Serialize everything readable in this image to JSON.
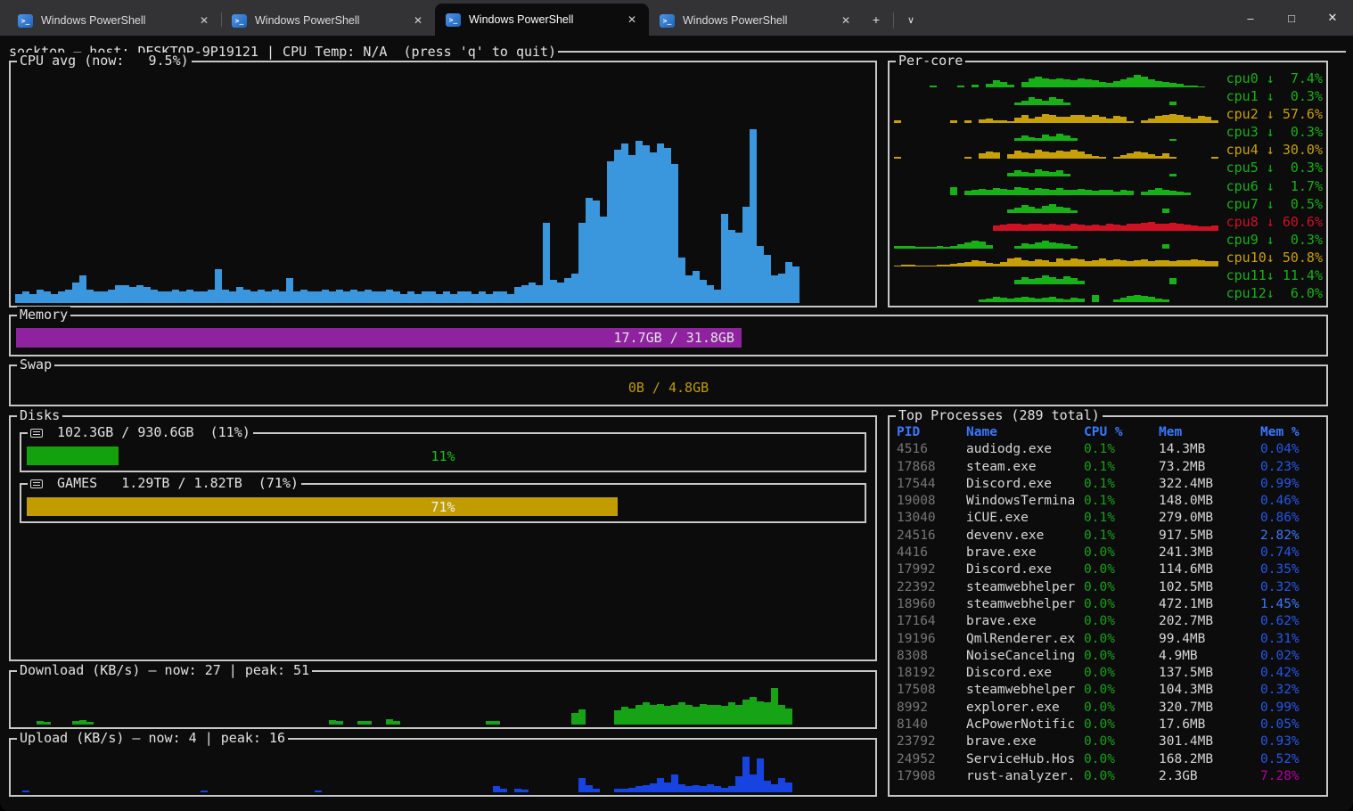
{
  "titlebar": {
    "tabs": [
      {
        "title": "Windows PowerShell",
        "active": false
      },
      {
        "title": "Windows PowerShell",
        "active": false
      },
      {
        "title": "Windows PowerShell",
        "active": true
      },
      {
        "title": "Windows PowerShell",
        "active": false
      }
    ],
    "icon_glyph": ">_",
    "close_glyph": "✕",
    "new_tab_glyph": "+",
    "dropdown_glyph": "∨",
    "minimize_glyph": "–",
    "maximize_glyph": "□",
    "window_close_glyph": "✕"
  },
  "header": {
    "text": "socktop — host: DESKTOP-9P19121 | CPU Temp: N/A  (press 'q' to quit)"
  },
  "cpu_avg": {
    "title": "CPU avg (now:   9.5%)",
    "color": "#3A96DD",
    "values": [
      4,
      5,
      4,
      6,
      5,
      4,
      5,
      6,
      9,
      12,
      6,
      5,
      5,
      6,
      8,
      8,
      7,
      8,
      7,
      6,
      5,
      5,
      6,
      5,
      6,
      5,
      5,
      6,
      15,
      6,
      5,
      7,
      6,
      5,
      6,
      5,
      6,
      5,
      11,
      5,
      6,
      5,
      5,
      6,
      5,
      6,
      5,
      6,
      5,
      6,
      5,
      5,
      6,
      5,
      4,
      5,
      4,
      5,
      5,
      4,
      5,
      4,
      5,
      5,
      4,
      5,
      4,
      5,
      5,
      4,
      7,
      8,
      9,
      8,
      35,
      10,
      9,
      11,
      13,
      35,
      46,
      45,
      38,
      62,
      67,
      70,
      65,
      71,
      69,
      66,
      70,
      68,
      61,
      20,
      12,
      14,
      10,
      8,
      6,
      39,
      32,
      31,
      42,
      76,
      25,
      21,
      12,
      13,
      18,
      16,
      0,
      0,
      0,
      0,
      0,
      0,
      0,
      0,
      0,
      0
    ]
  },
  "per_core": {
    "title": "Per-core",
    "cores": [
      {
        "label": "cpu0 ↓  7.4%",
        "color": "#17B117",
        "values": [
          0,
          0,
          0,
          0,
          0,
          10,
          0,
          0,
          0,
          12,
          0,
          14,
          0,
          22,
          42,
          28,
          16,
          0,
          32,
          48,
          58,
          52,
          45,
          50,
          44,
          40,
          50,
          44,
          38,
          30,
          25,
          34,
          44,
          54,
          68,
          62,
          44,
          36,
          30,
          24,
          18,
          12,
          8,
          6,
          0,
          0
        ]
      },
      {
        "label": "cpu1 ↓  0.3%",
        "color": "#17B117",
        "values": [
          0,
          0,
          0,
          0,
          0,
          0,
          0,
          0,
          0,
          0,
          0,
          0,
          0,
          0,
          0,
          0,
          0,
          14,
          28,
          44,
          34,
          24,
          48,
          38,
          18,
          0,
          0,
          0,
          0,
          0,
          0,
          0,
          0,
          0,
          0,
          0,
          0,
          0,
          0,
          20,
          0,
          0,
          0,
          0,
          0,
          0
        ]
      },
      {
        "label": "cpu2 ↓ 57.6%",
        "color": "#C7A008",
        "values": [
          14,
          0,
          0,
          0,
          0,
          0,
          0,
          0,
          16,
          0,
          14,
          0,
          22,
          28,
          18,
          14,
          10,
          32,
          44,
          28,
          34,
          52,
          48,
          38,
          34,
          44,
          48,
          36,
          44,
          36,
          28,
          40,
          34,
          10,
          0,
          18,
          28,
          42,
          48,
          52,
          44,
          36,
          28,
          42,
          34,
          14
        ]
      },
      {
        "label": "cpu3 ↓  0.3%",
        "color": "#17B117",
        "values": [
          0,
          0,
          0,
          0,
          0,
          0,
          0,
          0,
          0,
          0,
          0,
          0,
          0,
          0,
          0,
          0,
          0,
          18,
          32,
          24,
          18,
          38,
          28,
          42,
          32,
          16,
          0,
          0,
          0,
          0,
          0,
          0,
          0,
          0,
          0,
          0,
          0,
          0,
          0,
          14,
          0,
          0,
          0,
          0,
          0,
          0
        ]
      },
      {
        "label": "cpu4 ↓ 30.0%",
        "color": "#C7A008",
        "values": [
          10,
          0,
          0,
          0,
          0,
          0,
          0,
          0,
          0,
          0,
          12,
          0,
          34,
          44,
          38,
          0,
          28,
          48,
          38,
          34,
          52,
          44,
          36,
          48,
          40,
          52,
          44,
          28,
          18,
          10,
          0,
          14,
          24,
          34,
          40,
          36,
          28,
          18,
          34,
          12,
          0,
          0,
          0,
          0,
          0,
          12
        ]
      },
      {
        "label": "cpu5 ↓  0.3%",
        "color": "#17B117",
        "values": [
          0,
          0,
          0,
          0,
          0,
          0,
          0,
          0,
          0,
          0,
          0,
          0,
          0,
          0,
          0,
          0,
          24,
          38,
          28,
          20,
          44,
          34,
          26,
          38,
          18,
          0,
          0,
          0,
          0,
          0,
          0,
          0,
          0,
          0,
          0,
          0,
          0,
          0,
          0,
          16,
          0,
          0,
          0,
          0,
          0,
          0
        ]
      },
      {
        "label": "cpu6 ↓  1.7%",
        "color": "#17B117",
        "values": [
          0,
          0,
          0,
          0,
          0,
          0,
          0,
          0,
          42,
          0,
          24,
          28,
          34,
          26,
          38,
          34,
          28,
          44,
          36,
          30,
          40,
          34,
          28,
          36,
          30,
          26,
          34,
          28,
          24,
          30,
          26,
          20,
          28,
          24,
          0,
          16,
          26,
          36,
          30,
          24,
          18,
          14,
          0,
          0,
          0,
          0
        ]
      },
      {
        "label": "cpu7 ↓  0.5%",
        "color": "#17B117",
        "values": [
          0,
          0,
          0,
          0,
          0,
          0,
          0,
          0,
          0,
          0,
          0,
          0,
          0,
          0,
          0,
          0,
          18,
          28,
          44,
          34,
          24,
          38,
          48,
          34,
          26,
          14,
          0,
          0,
          0,
          0,
          0,
          0,
          0,
          0,
          0,
          0,
          0,
          0,
          24,
          0,
          0,
          0,
          0,
          0,
          0,
          0
        ]
      },
      {
        "label": "cpu8 ↓ 60.6%",
        "color": "#CF1124",
        "values": [
          0,
          0,
          0,
          0,
          0,
          0,
          0,
          0,
          0,
          0,
          0,
          0,
          0,
          0,
          28,
          34,
          38,
          36,
          34,
          40,
          36,
          34,
          38,
          34,
          30,
          36,
          34,
          28,
          34,
          30,
          36,
          34,
          28,
          40,
          36,
          42,
          46,
          40,
          36,
          42,
          38,
          34,
          28,
          24,
          22,
          26
        ]
      },
      {
        "label": "cpu9 ↓  0.3%",
        "color": "#17B117",
        "values": [
          14,
          16,
          14,
          10,
          8,
          10,
          14,
          10,
          14,
          22,
          32,
          42,
          38,
          18,
          0,
          0,
          0,
          14,
          28,
          24,
          34,
          42,
          36,
          28,
          24,
          14,
          0,
          0,
          0,
          0,
          0,
          0,
          0,
          0,
          0,
          0,
          0,
          0,
          24,
          0,
          0,
          0,
          0,
          0,
          0,
          0
        ]
      },
      {
        "label": "cpu10↓ 50.8%",
        "color": "#C7A008",
        "values": [
          6,
          8,
          10,
          6,
          5,
          6,
          8,
          10,
          12,
          18,
          26,
          34,
          28,
          20,
          16,
          24,
          42,
          48,
          36,
          28,
          40,
          34,
          26,
          46,
          36,
          44,
          38,
          30,
          36,
          44,
          34,
          40,
          34,
          28,
          34,
          38,
          30,
          36,
          34,
          28,
          36,
          34,
          38,
          34,
          30,
          28
        ]
      },
      {
        "label": "cpu11↓ 11.4%",
        "color": "#17B117",
        "values": [
          0,
          0,
          0,
          0,
          0,
          0,
          0,
          0,
          0,
          0,
          0,
          0,
          0,
          0,
          0,
          0,
          0,
          24,
          38,
          28,
          34,
          48,
          38,
          28,
          44,
          34,
          18,
          0,
          0,
          0,
          0,
          0,
          0,
          0,
          0,
          0,
          0,
          0,
          0,
          34,
          0,
          0,
          0,
          0,
          0,
          0
        ]
      },
      {
        "label": "cpu12↓  6.0%",
        "color": "#17B117",
        "values": [
          0,
          0,
          0,
          0,
          0,
          0,
          0,
          0,
          0,
          0,
          0,
          0,
          14,
          20,
          28,
          24,
          18,
          26,
          30,
          24,
          18,
          24,
          28,
          20,
          16,
          24,
          18,
          0,
          42,
          0,
          0,
          16,
          24,
          34,
          40,
          36,
          28,
          20,
          14,
          0,
          0,
          0,
          0,
          0,
          0,
          0
        ]
      }
    ]
  },
  "memory": {
    "title": "Memory",
    "label": "17.7GB / 31.8GB",
    "fill_pct": 55.6,
    "fill_color": "#8F239F",
    "label_color": "#E2E2E2"
  },
  "swap": {
    "title": "Swap",
    "label": "0B / 4.8GB",
    "fill_pct": 0,
    "label_color": "#C19C00"
  },
  "disks": {
    "title": "Disks",
    "items": [
      {
        "title": " 102.3GB / 930.6GB  (11%)",
        "pct": 11,
        "pct_label": "11%",
        "fill_color": "#13A10E",
        "pct_label_color": "#16C60C"
      },
      {
        "title": " GAMES   1.29TB / 1.82TB  (71%)",
        "pct": 71,
        "pct_label": "71%",
        "fill_color": "#C19C00",
        "pct_label_color": "#F2F2F2"
      }
    ]
  },
  "download": {
    "title": "Download (KB/s) — now: 27 | peak: 51",
    "color": "#16A316",
    "values": [
      0,
      0,
      0,
      8,
      6,
      0,
      0,
      0,
      8,
      12,
      6,
      0,
      0,
      0,
      0,
      0,
      0,
      0,
      0,
      0,
      0,
      0,
      0,
      0,
      0,
      0,
      0,
      0,
      0,
      0,
      0,
      0,
      0,
      0,
      0,
      0,
      0,
      0,
      0,
      0,
      0,
      0,
      0,
      0,
      12,
      8,
      0,
      0,
      10,
      8,
      0,
      0,
      14,
      10,
      0,
      0,
      0,
      0,
      0,
      0,
      0,
      0,
      0,
      0,
      0,
      0,
      10,
      8,
      0,
      0,
      0,
      0,
      0,
      0,
      0,
      0,
      0,
      0,
      30,
      38,
      0,
      0,
      0,
      0,
      35,
      45,
      40,
      50,
      55,
      48,
      52,
      46,
      50,
      55,
      48,
      45,
      52,
      48,
      50,
      46,
      55,
      50,
      62,
      70,
      58,
      55,
      92,
      48,
      40,
      0,
      0,
      0,
      0,
      0,
      0,
      0,
      0,
      0,
      0,
      0
    ]
  },
  "upload": {
    "title": "Upload (KB/s) — now: 4 | peak: 16",
    "color": "#1743E0",
    "values": [
      0,
      5,
      0,
      0,
      0,
      0,
      0,
      0,
      0,
      0,
      0,
      0,
      0,
      0,
      0,
      0,
      0,
      0,
      0,
      0,
      0,
      0,
      0,
      0,
      0,
      0,
      5,
      0,
      0,
      0,
      0,
      0,
      0,
      0,
      0,
      0,
      0,
      0,
      0,
      0,
      0,
      0,
      5,
      0,
      0,
      0,
      0,
      0,
      0,
      0,
      0,
      0,
      0,
      0,
      0,
      0,
      0,
      0,
      0,
      0,
      0,
      0,
      0,
      0,
      0,
      0,
      0,
      15,
      10,
      0,
      8,
      6,
      0,
      0,
      0,
      0,
      0,
      0,
      0,
      35,
      18,
      10,
      0,
      0,
      8,
      10,
      12,
      15,
      18,
      22,
      35,
      25,
      45,
      20,
      15,
      18,
      15,
      20,
      15,
      12,
      15,
      40,
      90,
      45,
      85,
      30,
      20,
      35,
      25,
      0,
      0,
      0,
      0,
      0,
      0,
      0,
      0,
      0,
      0,
      0
    ]
  },
  "processes": {
    "title": "Top Processes (289 total)",
    "columns": [
      "PID",
      "Name",
      "CPU %",
      "Mem",
      "Mem %"
    ],
    "rows": [
      {
        "pid": "4516",
        "name": "audiodg.exe",
        "cpu": "0.1%",
        "mem": "14.3MB",
        "mem_pct": "0.04%",
        "mem_pct_color": "#2558E8"
      },
      {
        "pid": "17868",
        "name": "steam.exe",
        "cpu": "0.1%",
        "mem": "73.2MB",
        "mem_pct": "0.23%",
        "mem_pct_color": "#2558E8"
      },
      {
        "pid": "17544",
        "name": "Discord.exe",
        "cpu": "0.1%",
        "mem": "322.4MB",
        "mem_pct": "0.99%",
        "mem_pct_color": "#2558E8"
      },
      {
        "pid": "19008",
        "name": "WindowsTermina",
        "cpu": "0.1%",
        "mem": "148.0MB",
        "mem_pct": "0.46%",
        "mem_pct_color": "#2558E8"
      },
      {
        "pid": "13040",
        "name": "iCUE.exe",
        "cpu": "0.1%",
        "mem": "279.0MB",
        "mem_pct": "0.86%",
        "mem_pct_color": "#2558E8"
      },
      {
        "pid": "24516",
        "name": "devenv.exe",
        "cpu": "0.1%",
        "mem": "917.5MB",
        "mem_pct": "2.82%",
        "mem_pct_color": "#3B78FF"
      },
      {
        "pid": "4416",
        "name": "brave.exe",
        "cpu": "0.0%",
        "mem": "241.3MB",
        "mem_pct": "0.74%",
        "mem_pct_color": "#2558E8"
      },
      {
        "pid": "17992",
        "name": "Discord.exe",
        "cpu": "0.0%",
        "mem": "114.6MB",
        "mem_pct": "0.35%",
        "mem_pct_color": "#2558E8"
      },
      {
        "pid": "22392",
        "name": "steamwebhelper",
        "cpu": "0.0%",
        "mem": "102.5MB",
        "mem_pct": "0.32%",
        "mem_pct_color": "#2558E8"
      },
      {
        "pid": "18960",
        "name": "steamwebhelper",
        "cpu": "0.0%",
        "mem": "472.1MB",
        "mem_pct": "1.45%",
        "mem_pct_color": "#3B78FF"
      },
      {
        "pid": "17164",
        "name": "brave.exe",
        "cpu": "0.0%",
        "mem": "202.7MB",
        "mem_pct": "0.62%",
        "mem_pct_color": "#2558E8"
      },
      {
        "pid": "19196",
        "name": "QmlRenderer.ex",
        "cpu": "0.0%",
        "mem": "99.4MB",
        "mem_pct": "0.31%",
        "mem_pct_color": "#2558E8"
      },
      {
        "pid": "8308",
        "name": "NoiseCanceling",
        "cpu": "0.0%",
        "mem": "4.9MB",
        "mem_pct": "0.02%",
        "mem_pct_color": "#2558E8"
      },
      {
        "pid": "18192",
        "name": "Discord.exe",
        "cpu": "0.0%",
        "mem": "137.5MB",
        "mem_pct": "0.42%",
        "mem_pct_color": "#2558E8"
      },
      {
        "pid": "17508",
        "name": "steamwebhelper",
        "cpu": "0.0%",
        "mem": "104.3MB",
        "mem_pct": "0.32%",
        "mem_pct_color": "#2558E8"
      },
      {
        "pid": "8992",
        "name": "explorer.exe",
        "cpu": "0.0%",
        "mem": "320.7MB",
        "mem_pct": "0.99%",
        "mem_pct_color": "#2558E8"
      },
      {
        "pid": "8140",
        "name": "AcPowerNotific",
        "cpu": "0.0%",
        "mem": "17.6MB",
        "mem_pct": "0.05%",
        "mem_pct_color": "#2558E8"
      },
      {
        "pid": "23792",
        "name": "brave.exe",
        "cpu": "0.0%",
        "mem": "301.4MB",
        "mem_pct": "0.93%",
        "mem_pct_color": "#2558E8"
      },
      {
        "pid": "24952",
        "name": "ServiceHub.Hos",
        "cpu": "0.0%",
        "mem": "168.2MB",
        "mem_pct": "0.52%",
        "mem_pct_color": "#2558E8"
      },
      {
        "pid": "17908",
        "name": "rust-analyzer.",
        "cpu": "0.0%",
        "mem": "2.3GB",
        "mem_pct": "7.28%",
        "mem_pct_color": "#B4009E"
      }
    ]
  }
}
